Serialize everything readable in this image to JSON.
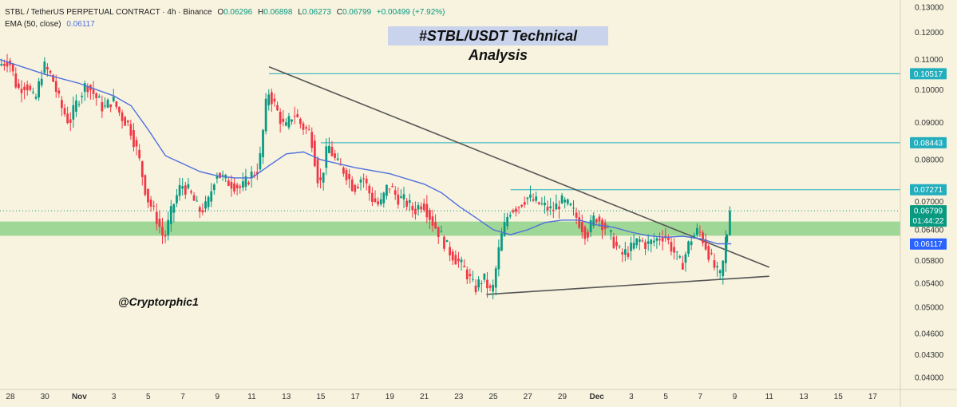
{
  "header": {
    "symbol": "STBL / TetherUS PERPETUAL CONTRACT · 4h · Binance",
    "o_label": "O",
    "o_value": "0.06296",
    "h_label": "H",
    "h_value": "0.06898",
    "l_label": "L",
    "l_value": "0.06273",
    "c_label": "C",
    "c_value": "0.06799",
    "change": "+0.00499 (+7.92%)",
    "ema_label": "EMA (50, close)",
    "ema_value": "0.06117"
  },
  "title": "#STBL/USDT Technical Analysis",
  "watermark": "@Cryptorphic1",
  "colors": {
    "background": "#f7f3df",
    "up": "#089981",
    "down": "#f23645",
    "ema": "#4f6fdc",
    "support_zone": "#8fd18a",
    "level_line": "#22aebd",
    "trendline": "#555555",
    "price_tag": "#089981",
    "ema_tag": "#2962ff",
    "level_tag": "#22aebd"
  },
  "chart_data": {
    "type": "candlestick",
    "title": "#STBL/USDT Technical Analysis",
    "y_scale": "log",
    "ylim": [
      0.0385,
      0.133
    ],
    "y_ticks": [
      "0.13000",
      "0.12000",
      "0.11000",
      "0.10000",
      "0.09000",
      "0.08000",
      "0.07000",
      "0.06400",
      "0.05800",
      "0.05400",
      "0.05000",
      "0.04600",
      "0.04300",
      "0.04000"
    ],
    "x_ticks": [
      "28",
      "30",
      "Nov",
      "3",
      "5",
      "7",
      "9",
      "11",
      "13",
      "15",
      "17",
      "19",
      "21",
      "23",
      "25",
      "27",
      "29",
      "Dec",
      "3",
      "5",
      "7",
      "9",
      "11",
      "13",
      "15",
      "17"
    ],
    "x_tick_days": [
      -4,
      -2,
      0,
      2,
      4,
      6,
      8,
      10,
      12,
      14,
      16,
      18,
      20,
      22,
      24,
      26,
      28,
      30,
      32,
      34,
      36,
      38,
      40,
      42,
      44,
      46
    ],
    "day_range": [
      -4.6,
      47.6
    ],
    "price_anchors": [
      [
        -4.6,
        0.108
      ],
      [
        -4.0,
        0.11
      ],
      [
        -3.5,
        0.1
      ],
      [
        -3.0,
        0.102
      ],
      [
        -2.5,
        0.096
      ],
      [
        -2.0,
        0.108
      ],
      [
        -1.5,
        0.104
      ],
      [
        -1.0,
        0.095
      ],
      [
        -0.5,
        0.09
      ],
      [
        0.0,
        0.097
      ],
      [
        0.5,
        0.102
      ],
      [
        1.0,
        0.098
      ],
      [
        1.5,
        0.094
      ],
      [
        2.0,
        0.097
      ],
      [
        2.5,
        0.092
      ],
      [
        3.0,
        0.089
      ],
      [
        3.5,
        0.081
      ],
      [
        4.0,
        0.071
      ],
      [
        4.5,
        0.067
      ],
      [
        5.0,
        0.062
      ],
      [
        5.5,
        0.069
      ],
      [
        6.0,
        0.074
      ],
      [
        6.5,
        0.072
      ],
      [
        7.0,
        0.068
      ],
      [
        7.5,
        0.069
      ],
      [
        8.0,
        0.077
      ],
      [
        8.5,
        0.075
      ],
      [
        9.0,
        0.074
      ],
      [
        9.5,
        0.073
      ],
      [
        10.0,
        0.076
      ],
      [
        10.5,
        0.078
      ],
      [
        11.0,
        0.1
      ],
      [
        11.5,
        0.094
      ],
      [
        12.0,
        0.088
      ],
      [
        12.5,
        0.093
      ],
      [
        13.0,
        0.089
      ],
      [
        13.5,
        0.087
      ],
      [
        14.0,
        0.073
      ],
      [
        14.5,
        0.084
      ],
      [
        15.0,
        0.079
      ],
      [
        15.5,
        0.077
      ],
      [
        16.0,
        0.073
      ],
      [
        16.5,
        0.076
      ],
      [
        17.0,
        0.071
      ],
      [
        17.5,
        0.069
      ],
      [
        18.0,
        0.074
      ],
      [
        18.5,
        0.071
      ],
      [
        19.0,
        0.07
      ],
      [
        19.5,
        0.068
      ],
      [
        20.0,
        0.07
      ],
      [
        20.5,
        0.066
      ],
      [
        21.0,
        0.063
      ],
      [
        21.5,
        0.06
      ],
      [
        22.0,
        0.058
      ],
      [
        22.5,
        0.056
      ],
      [
        23.0,
        0.053
      ],
      [
        23.5,
        0.055
      ],
      [
        24.0,
        0.052
      ],
      [
        24.5,
        0.062
      ],
      [
        25.0,
        0.068
      ],
      [
        25.5,
        0.069
      ],
      [
        26.0,
        0.071
      ],
      [
        26.5,
        0.07
      ],
      [
        27.0,
        0.069
      ],
      [
        27.5,
        0.068
      ],
      [
        28.0,
        0.07
      ],
      [
        28.5,
        0.069
      ],
      [
        29.0,
        0.066
      ],
      [
        29.5,
        0.063
      ],
      [
        30.0,
        0.067
      ],
      [
        30.5,
        0.065
      ],
      [
        31.0,
        0.062
      ],
      [
        31.5,
        0.059
      ],
      [
        32.0,
        0.06
      ],
      [
        32.5,
        0.062
      ],
      [
        33.0,
        0.061
      ],
      [
        33.5,
        0.062
      ],
      [
        34.0,
        0.063
      ],
      [
        34.5,
        0.06
      ],
      [
        35.0,
        0.057
      ],
      [
        35.5,
        0.062
      ],
      [
        36.0,
        0.064
      ],
      [
        36.5,
        0.06
      ],
      [
        37.0,
        0.056
      ],
      [
        37.3,
        0.055
      ],
      [
        37.6,
        0.063
      ],
      [
        37.8,
        0.068
      ]
    ],
    "ema": {
      "name": "EMA (50, close)",
      "last": 0.06117,
      "points": [
        [
          -4.6,
          0.11
        ],
        [
          -2.0,
          0.105
        ],
        [
          0.0,
          0.102
        ],
        [
          2.0,
          0.098
        ],
        [
          3.0,
          0.095
        ],
        [
          4.0,
          0.088
        ],
        [
          5.0,
          0.081
        ],
        [
          6.0,
          0.079
        ],
        [
          7.0,
          0.077
        ],
        [
          8.0,
          0.076
        ],
        [
          9.0,
          0.0755
        ],
        [
          10.0,
          0.0755
        ],
        [
          11.0,
          0.0785
        ],
        [
          12.0,
          0.0815
        ],
        [
          13.0,
          0.082
        ],
        [
          14.0,
          0.08
        ],
        [
          16.0,
          0.078
        ],
        [
          18.0,
          0.0765
        ],
        [
          20.0,
          0.074
        ],
        [
          21.0,
          0.072
        ],
        [
          22.0,
          0.069
        ],
        [
          23.0,
          0.0665
        ],
        [
          24.0,
          0.064
        ],
        [
          25.0,
          0.063
        ],
        [
          26.0,
          0.064
        ],
        [
          27.0,
          0.0655
        ],
        [
          28.0,
          0.066
        ],
        [
          29.0,
          0.066
        ],
        [
          30.0,
          0.065
        ],
        [
          31.0,
          0.0645
        ],
        [
          32.0,
          0.0635
        ],
        [
          33.0,
          0.0628
        ],
        [
          34.0,
          0.0625
        ],
        [
          35.0,
          0.0627
        ],
        [
          36.0,
          0.0622
        ],
        [
          37.0,
          0.0612
        ],
        [
          37.8,
          0.0612
        ]
      ]
    },
    "support_zone": [
      0.0628,
      0.0657
    ],
    "resistance_levels": [
      {
        "value": 0.10517,
        "label": "0.10517",
        "from_day": 11.0
      },
      {
        "value": 0.08443,
        "label": "0.08443",
        "from_day": 14.0
      },
      {
        "value": 0.07271,
        "label": "0.07271",
        "from_day": 25.0
      }
    ],
    "last_price": {
      "value": 0.06799,
      "label": "0.06799",
      "countdown": "01:44:22"
    },
    "ema_tag": {
      "value": 0.06117,
      "label": "0.06117"
    },
    "trendlines": [
      {
        "name": "descending-resistance",
        "points": [
          [
            11.0,
            0.1075
          ],
          [
            40.0,
            0.0568
          ]
        ]
      },
      {
        "name": "ascending-support",
        "points": [
          [
            23.6,
            0.0521
          ],
          [
            40.0,
            0.0552
          ]
        ]
      }
    ]
  }
}
